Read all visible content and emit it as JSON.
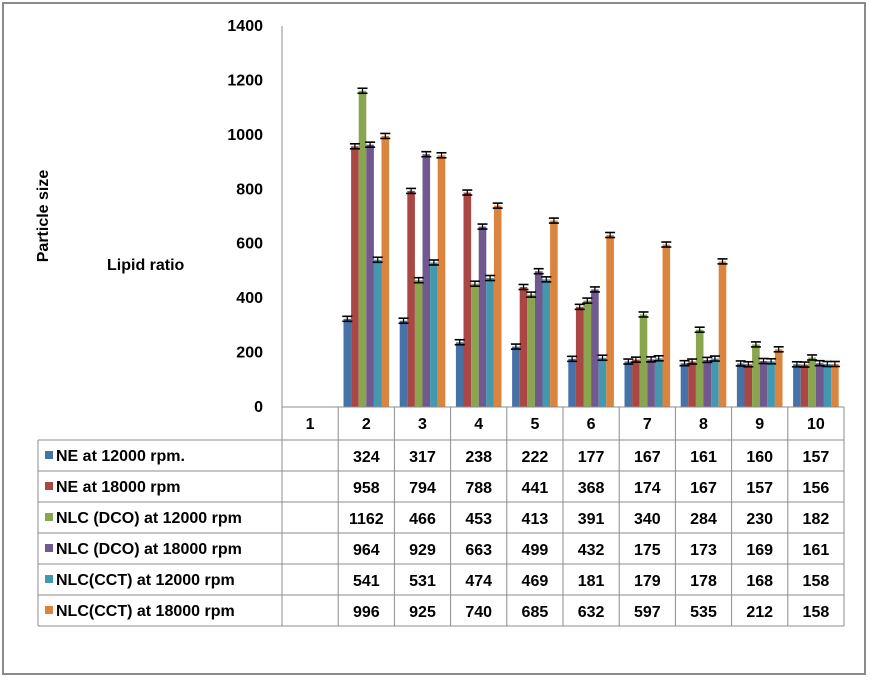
{
  "chart_data": {
    "type": "bar",
    "title": "",
    "xlabel": "Lipid ratio",
    "ylabel": "Particle size",
    "ylim": [
      0,
      1400
    ],
    "yticks": [
      "0",
      "200",
      "400",
      "600",
      "800",
      "1000",
      "1200",
      "1400"
    ],
    "categories": [
      "1",
      "2",
      "3",
      "4",
      "5",
      "6",
      "7",
      "8",
      "9",
      "10"
    ],
    "grid": false,
    "error_bars": true,
    "legend_placement": "data-table-bottom",
    "series": [
      {
        "name": "NE at 12000 rpm.",
        "color": "#4572A7",
        "values": [
          null,
          324,
          317,
          238,
          222,
          177,
          167,
          161,
          160,
          157
        ]
      },
      {
        "name": "NE at 18000 rpm",
        "color": "#AA4643",
        "values": [
          null,
          958,
          794,
          788,
          441,
          368,
          174,
          167,
          157,
          156
        ]
      },
      {
        "name": "NLC (DCO) at 12000 rpm",
        "color": "#89A54E",
        "values": [
          null,
          1162,
          466,
          453,
          413,
          391,
          340,
          284,
          230,
          182
        ]
      },
      {
        "name": "NLC (DCO) at 18000 rpm",
        "color": "#71588F",
        "values": [
          null,
          964,
          929,
          663,
          499,
          432,
          175,
          173,
          169,
          161
        ]
      },
      {
        "name": "NLC(CCT) at 12000 rpm",
        "color": "#4198AF",
        "values": [
          null,
          541,
          531,
          474,
          469,
          181,
          179,
          178,
          168,
          158
        ]
      },
      {
        "name": "NLC(CCT) at 18000 rpm",
        "color": "#DB843D",
        "values": [
          null,
          996,
          925,
          740,
          685,
          632,
          597,
          535,
          212,
          158
        ]
      }
    ]
  }
}
